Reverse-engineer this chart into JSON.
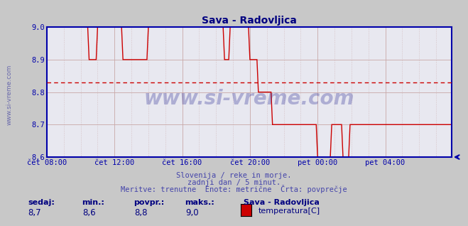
{
  "title": "Sava - Radovljica",
  "title_color": "#000080",
  "bg_color": "#c8c8c8",
  "plot_bg_color": "#e8e8f0",
  "line_color": "#cc0000",
  "avg_line_color": "#cc0000",
  "avg_value": 8.83,
  "ylim": [
    8.6,
    9.0
  ],
  "yticks": [
    8.6,
    8.7,
    8.8,
    8.9,
    9.0
  ],
  "grid_color": "#c8a8a8",
  "axis_color": "#0000aa",
  "tick_color": "#000080",
  "watermark_color": "#000080",
  "xtick_labels": [
    "čet 08:00",
    "čet 12:00",
    "čet 16:00",
    "čet 20:00",
    "pet 00:00",
    "pet 04:00"
  ],
  "xtick_positions": [
    0,
    48,
    96,
    144,
    192,
    240
  ],
  "total_points": 288,
  "subtitle1": "Slovenija / reke in morje.",
  "subtitle2": "zadnji dan / 5 minut.",
  "subtitle3": "Meritve: trenutne  Enote: metrične  Črta: povprečje",
  "footer_labels": [
    "sedaj:",
    "min.:",
    "povpr.:",
    "maks.:"
  ],
  "footer_values": [
    "8,7",
    "8,6",
    "8,8",
    "9,0"
  ],
  "legend_title": "Sava - Radovljica",
  "legend_label": "temperatura[C]",
  "legend_color": "#cc0000",
  "left_label": "www.si-vreme.com",
  "left_label_color": "#4040a0"
}
